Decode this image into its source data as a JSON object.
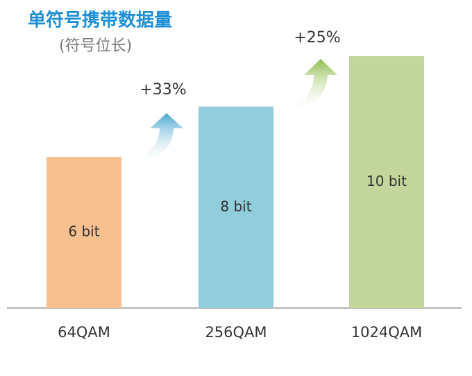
{
  "chart_data": {
    "type": "bar",
    "title": "单符号携带数据量",
    "subtitle": "(符号位长)",
    "categories": [
      "64QAM",
      "256QAM",
      "1024QAM"
    ],
    "values": [
      6,
      8,
      10
    ],
    "value_labels": [
      "6 bit",
      "8 bit",
      "10 bit"
    ],
    "colors": [
      "#f8c08f",
      "#92cddc",
      "#c3d69b"
    ],
    "annotations": [
      "+33%",
      "+25%"
    ]
  }
}
